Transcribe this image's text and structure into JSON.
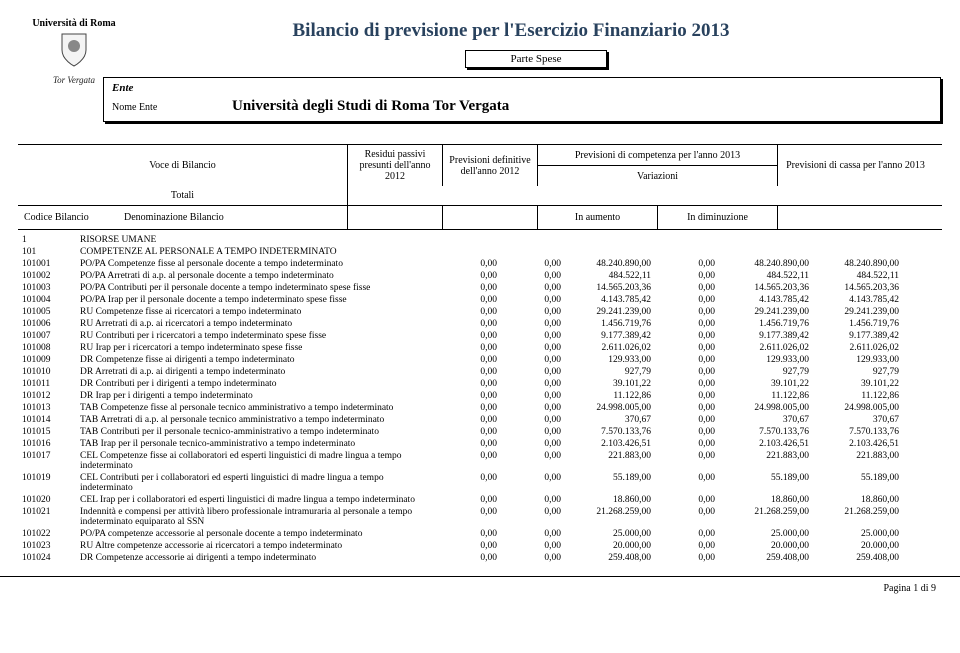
{
  "logo": {
    "top": "Università di Roma",
    "sub": "Tor Vergata"
  },
  "title": "Bilancio di previsione per l'Esercizio Finanziario 2013",
  "parte": "Parte Spese",
  "ente": {
    "label": "Ente",
    "caption": "Nome Ente",
    "name": "Università degli Studi di Roma Tor Vergata"
  },
  "header": {
    "voce": "Voce di Bilancio",
    "residui": "Residui passivi presunti dell'anno 2012",
    "prev_def": "Previsioni definitive dell'anno 2012",
    "competenza": "Previsioni di competenza per l'anno 2013",
    "variazioni": "Variazioni",
    "totali": "Totali",
    "cassa": "Previsioni di cassa per l'anno 2013",
    "codice": "Codice Bilancio",
    "denom": "Denominazione Bilancio",
    "aum": "In aumento",
    "dim": "In diminuzione"
  },
  "sections": [
    {
      "code": "1",
      "name": "RISORSE UMANE"
    },
    {
      "code": "101",
      "name": "COMPETENZE AL PERSONALE A TEMPO INDETERMINATO"
    }
  ],
  "rows": [
    {
      "code": "101001",
      "desc": "PO/PA Competenze fisse al personale docente a tempo indeterminato",
      "c1": "0,00",
      "c2": "0,00",
      "c3": "48.240.890,00",
      "c4": "0,00",
      "c5": "48.240.890,00",
      "c6": "48.240.890,00"
    },
    {
      "code": "101002",
      "desc": "PO/PA Arretrati di a.p. al personale docente a tempo indeterminato",
      "c1": "0,00",
      "c2": "0,00",
      "c3": "484.522,11",
      "c4": "0,00",
      "c5": "484.522,11",
      "c6": "484.522,11"
    },
    {
      "code": "101003",
      "desc": "PO/PA Contributi per il personale docente a tempo indeterminato spese fisse",
      "c1": "0,00",
      "c2": "0,00",
      "c3": "14.565.203,36",
      "c4": "0,00",
      "c5": "14.565.203,36",
      "c6": "14.565.203,36"
    },
    {
      "code": "101004",
      "desc": "PO/PA Irap per il personale docente a tempo indeterminato spese fisse",
      "c1": "0,00",
      "c2": "0,00",
      "c3": "4.143.785,42",
      "c4": "0,00",
      "c5": "4.143.785,42",
      "c6": "4.143.785,42"
    },
    {
      "code": "101005",
      "desc": "RU Competenze fisse ai ricercatori a tempo indeterminato",
      "c1": "0,00",
      "c2": "0,00",
      "c3": "29.241.239,00",
      "c4": "0,00",
      "c5": "29.241.239,00",
      "c6": "29.241.239,00"
    },
    {
      "code": "101006",
      "desc": "RU Arretrati di a.p. ai ricercatori a tempo indeterminato",
      "c1": "0,00",
      "c2": "0,00",
      "c3": "1.456.719,76",
      "c4": "0,00",
      "c5": "1.456.719,76",
      "c6": "1.456.719,76"
    },
    {
      "code": "101007",
      "desc": "RU Contributi per i ricercatori a tempo indeterminato spese fisse",
      "c1": "0,00",
      "c2": "0,00",
      "c3": "9.177.389,42",
      "c4": "0,00",
      "c5": "9.177.389,42",
      "c6": "9.177.389,42"
    },
    {
      "code": "101008",
      "desc": "RU Irap per i ricercatori a tempo indeterminato spese fisse",
      "c1": "0,00",
      "c2": "0,00",
      "c3": "2.611.026,02",
      "c4": "0,00",
      "c5": "2.611.026,02",
      "c6": "2.611.026,02"
    },
    {
      "code": "101009",
      "desc": "DR Competenze fisse ai dirigenti a tempo indeterminato",
      "c1": "0,00",
      "c2": "0,00",
      "c3": "129.933,00",
      "c4": "0,00",
      "c5": "129.933,00",
      "c6": "129.933,00"
    },
    {
      "code": "101010",
      "desc": "DR Arretrati di a.p. ai dirigenti a tempo indeterminato",
      "c1": "0,00",
      "c2": "0,00",
      "c3": "927,79",
      "c4": "0,00",
      "c5": "927,79",
      "c6": "927,79"
    },
    {
      "code": "101011",
      "desc": "DR Contributi per i dirigenti a tempo indeterminato",
      "c1": "0,00",
      "c2": "0,00",
      "c3": "39.101,22",
      "c4": "0,00",
      "c5": "39.101,22",
      "c6": "39.101,22"
    },
    {
      "code": "101012",
      "desc": "DR Irap per i dirigenti  a tempo indeterminato",
      "c1": "0,00",
      "c2": "0,00",
      "c3": "11.122,86",
      "c4": "0,00",
      "c5": "11.122,86",
      "c6": "11.122,86"
    },
    {
      "code": "101013",
      "desc": "TAB Competenze fisse al personale tecnico amministrativo a tempo indeterminato",
      "c1": "0,00",
      "c2": "0,00",
      "c3": "24.998.005,00",
      "c4": "0,00",
      "c5": "24.998.005,00",
      "c6": "24.998.005,00"
    },
    {
      "code": "101014",
      "desc": "TAB Arretrati di a.p. al personale tecnico amministrativo a tempo indeterminato",
      "c1": "0,00",
      "c2": "0,00",
      "c3": "370,67",
      "c4": "0,00",
      "c5": "370,67",
      "c6": "370,67"
    },
    {
      "code": "101015",
      "desc": "TAB Contributi per il personale tecnico-amministrativo a tempo indeterminato",
      "c1": "0,00",
      "c2": "0,00",
      "c3": "7.570.133,76",
      "c4": "0,00",
      "c5": "7.570.133,76",
      "c6": "7.570.133,76"
    },
    {
      "code": "101016",
      "desc": "TAB Irap per il personale tecnico-amministrativo a tempo indeterminato",
      "c1": "0,00",
      "c2": "0,00",
      "c3": "2.103.426,51",
      "c4": "0,00",
      "c5": "2.103.426,51",
      "c6": "2.103.426,51"
    },
    {
      "code": "101017",
      "desc": "CEL Competenze fisse ai collaboratori ed esperti linguistici di madre lingua a tempo indeterminato",
      "c1": "0,00",
      "c2": "0,00",
      "c3": "221.883,00",
      "c4": "0,00",
      "c5": "221.883,00",
      "c6": "221.883,00"
    },
    {
      "code": "101019",
      "desc": "CEL Contributi per i collaboratori ed esperti linguistici di madre lingua a tempo indeterminato",
      "c1": "0,00",
      "c2": "0,00",
      "c3": "55.189,00",
      "c4": "0,00",
      "c5": "55.189,00",
      "c6": "55.189,00"
    },
    {
      "code": "101020",
      "desc": "CEL Irap per i collaboratori ed esperti linguistici di madre lingua a tempo indeterminato",
      "c1": "0,00",
      "c2": "0,00",
      "c3": "18.860,00",
      "c4": "0,00",
      "c5": "18.860,00",
      "c6": "18.860,00"
    },
    {
      "code": "101021",
      "desc": "Indennità e compensi per attività libero professionale intramuraria al personale a tempo indeterminato equiparato al SSN",
      "c1": "0,00",
      "c2": "0,00",
      "c3": "21.268.259,00",
      "c4": "0,00",
      "c5": "21.268.259,00",
      "c6": "21.268.259,00"
    },
    {
      "code": "101022",
      "desc": "PO/PA competenze accessorie al personale docente a tempo indeterminato",
      "c1": "0,00",
      "c2": "0,00",
      "c3": "25.000,00",
      "c4": "0,00",
      "c5": "25.000,00",
      "c6": "25.000,00"
    },
    {
      "code": "101023",
      "desc": "RU Altre competenze accessorie ai ricercatori a tempo indeterminato",
      "c1": "0,00",
      "c2": "0,00",
      "c3": "20.000,00",
      "c4": "0,00",
      "c5": "20.000,00",
      "c6": "20.000,00"
    },
    {
      "code": "101024",
      "desc": "DR Competenze accessorie ai dirigenti  a tempo indeterminato",
      "c1": "0,00",
      "c2": "0,00",
      "c3": "259.408,00",
      "c4": "0,00",
      "c5": "259.408,00",
      "c6": "259.408,00"
    }
  ],
  "footer": "Pagina 1 di 9",
  "colors": {
    "title": "#29425e",
    "text": "#000000",
    "bg": "#ffffff"
  }
}
